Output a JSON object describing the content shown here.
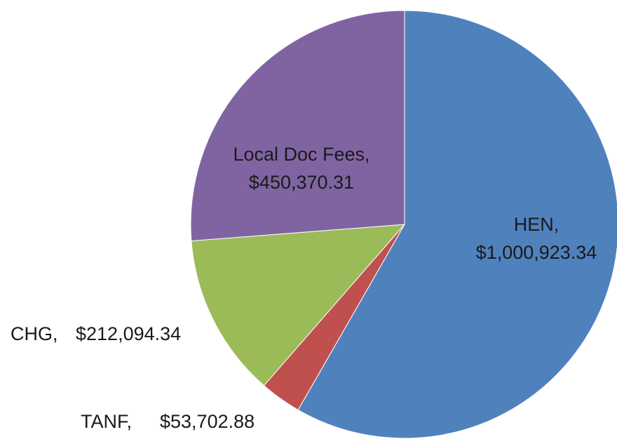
{
  "chart_data": {
    "type": "pie",
    "categories": [
      "HEN,",
      "TANF,",
      "CHG,",
      "Local Doc Fees,"
    ],
    "values": [
      1000923.34,
      53702.88,
      212094.34,
      450370.31
    ],
    "value_labels": [
      "$1,000,923.34",
      "$53,702.88",
      "$212,094.34",
      "$450,370.31"
    ],
    "colors": [
      "#4f81bd",
      "#c0504d",
      "#9bbb59",
      "#8064a2"
    ]
  }
}
